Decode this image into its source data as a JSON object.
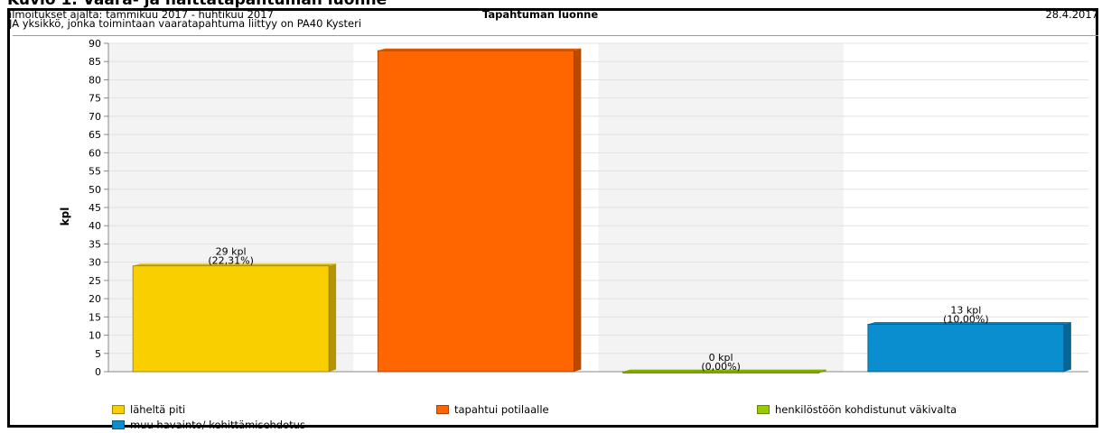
{
  "figure_caption": "Kuvio 1. Vaara- ja haittatapahtuman luonne",
  "header": {
    "period_line": "ilmoitukset ajalta: tammikuu 2017 - huhtikuu 2017",
    "unit_line": "JA yksikkö, jonka toimintaan vaaratapahtuma liittyy on PA40 Kysteri",
    "title": "Tapahtuman luonne",
    "date": "28.4.2017"
  },
  "chart_data": {
    "type": "bar",
    "title": "Tapahtuman luonne",
    "ylabel": "kpl",
    "xlabel": "",
    "ylim": [
      0,
      90
    ],
    "yticks": [
      0,
      5,
      10,
      15,
      20,
      25,
      30,
      35,
      40,
      45,
      50,
      55,
      60,
      65,
      70,
      75,
      80,
      85,
      90
    ],
    "grid": true,
    "legend_position": "bottom",
    "categories": [
      "läheltä piti",
      "tapahtui potilaalle",
      "henkilöstöön kohdistunut väkivalta",
      "muu havainto/ kehittämisehdotus"
    ],
    "values": [
      29,
      88,
      0,
      13
    ],
    "colors": [
      "#f9cf00",
      "#ff6600",
      "#99cc00",
      "#0a8ecf"
    ],
    "data_labels": [
      {
        "count": "29 kpl",
        "pct": "(22,31%)"
      },
      null,
      {
        "count": "0 kpl",
        "pct": "(0,00%)"
      },
      {
        "count": "13 kpl",
        "pct": "(10,00%)"
      }
    ]
  }
}
